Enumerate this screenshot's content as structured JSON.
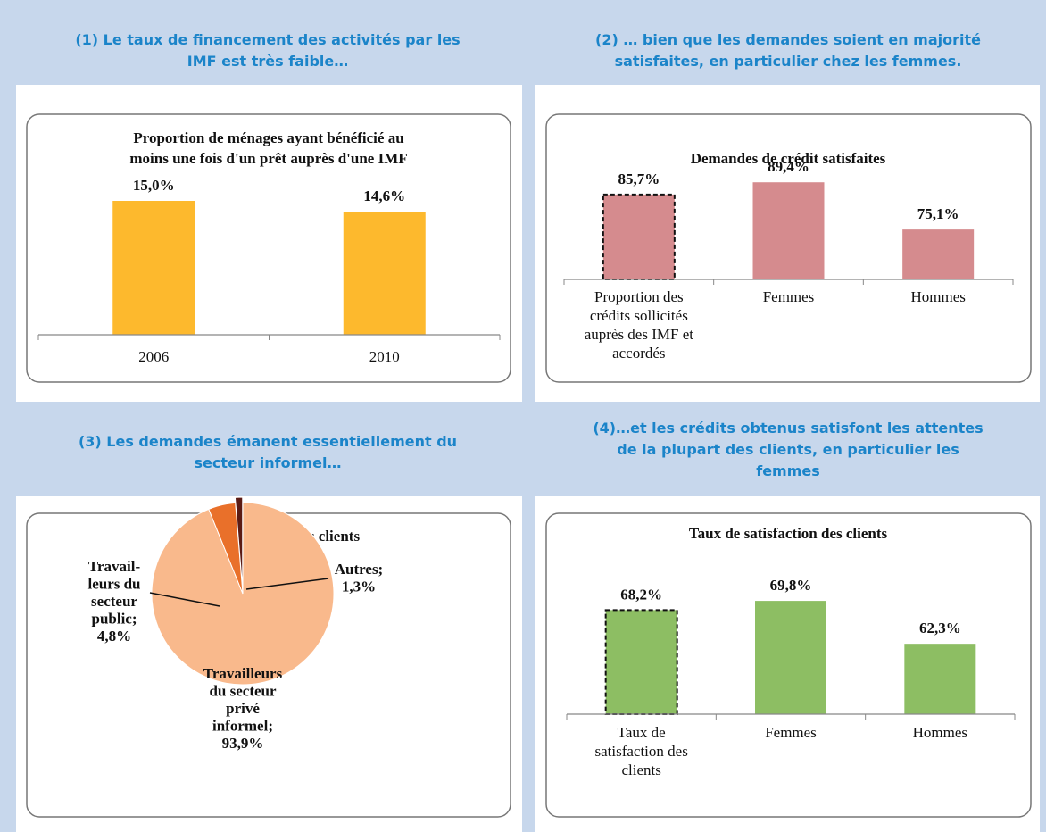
{
  "chart_data": [
    {
      "type": "bar",
      "heading": "(1) Le taux de financement des activités par les\nIMF est très faible…",
      "title": "Proportion de ménages ayant bénéficié au\nmoins une fois d'un prêt auprès d'une IMF",
      "categories": [
        "2006",
        "2010"
      ],
      "values": [
        15.0,
        14.6
      ],
      "value_labels": [
        "15,0%",
        "14,6%"
      ],
      "color": "#fdb92d",
      "ylim": [
        10,
        16
      ]
    },
    {
      "type": "bar",
      "heading": "(2) … bien que les demandes soient en majorité\nsatisfaites, en particulier chez les femmes.",
      "title": "Demandes de crédit satisfaites",
      "categories": [
        "Proportion des\ncrédits sollicités\nauprès des IMF et\naccordés",
        "Femmes",
        "Hommes"
      ],
      "values": [
        85.7,
        89.4,
        75.1
      ],
      "value_labels": [
        "85,7%",
        "89,4%",
        "75,1%"
      ],
      "color": "#d58b8e",
      "ylim": [
        60,
        90
      ],
      "dashed_outline": [
        0
      ]
    },
    {
      "type": "pie",
      "heading": "(3) Les demandes émanent essentiellement du\nsecteur informel…",
      "title": "Secteur d'activité des clients",
      "values": [
        93.9,
        4.8,
        1.3
      ],
      "value_labels": [
        "Travailleurs\ndu secteur\nprivé\ninformel;\n93,9%",
        "Travail-\nleurs du\nsecteur\npublic;\n4,8%",
        "Autres;\n1,3%"
      ],
      "colors": [
        "#f9b98c",
        "#e9702a",
        "#5b1b14"
      ]
    },
    {
      "type": "bar",
      "heading": "(4)…et les crédits obtenus satisfont les attentes\nde la plupart des clients, en particulier les\nfemmes",
      "title": "Taux de satisfaction des clients",
      "categories": [
        "Taux de\nsatisfaction des\nclients",
        "Femmes",
        "Hommes"
      ],
      "values": [
        68.2,
        69.8,
        62.3
      ],
      "value_labels": [
        "68,2%",
        "69,8%",
        "62,3%"
      ],
      "color": "#8dbe63",
      "ylim": [
        50,
        72
      ],
      "dashed_outline": [
        0
      ]
    }
  ]
}
